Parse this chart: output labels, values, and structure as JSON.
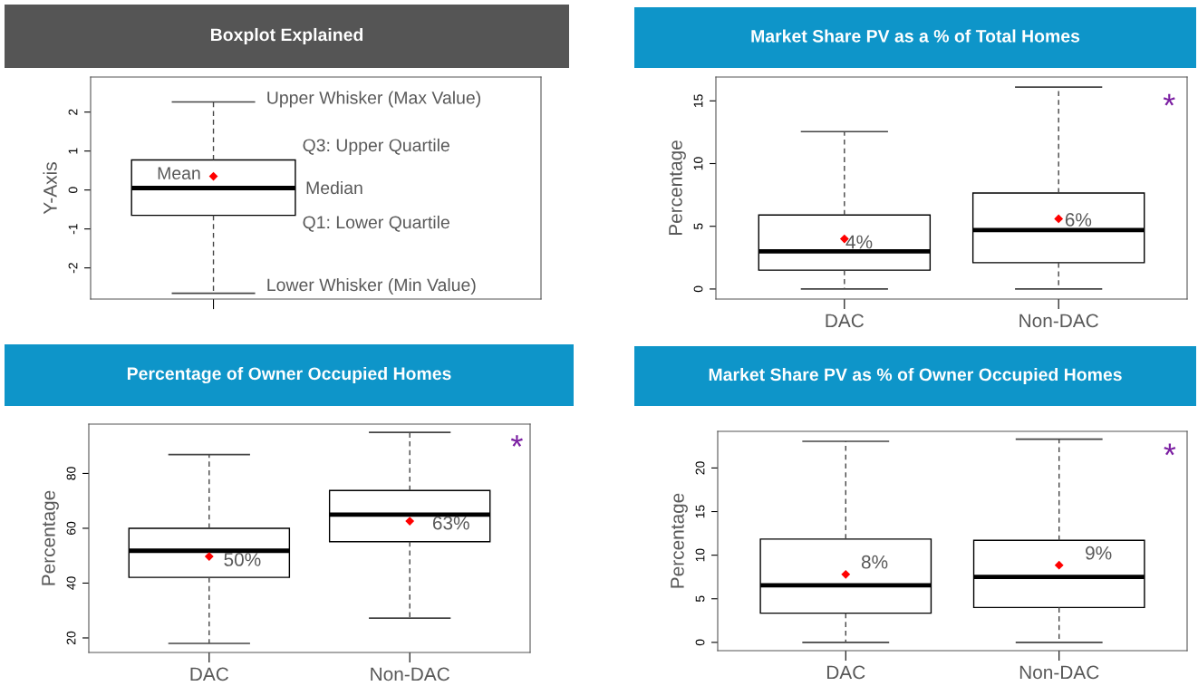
{
  "chart_data": [
    {
      "type": "box",
      "title": "Boxplot Explained",
      "ylabel": "Y-Axis",
      "categories": [
        null
      ],
      "boxes": [
        {
          "low": -2.65,
          "q1": -0.65,
          "median": 0.05,
          "q3": 0.77,
          "high": 2.26,
          "mean": 0.35
        }
      ],
      "ylim": [
        -2.8,
        2.9
      ],
      "yticks": [
        {
          "value": -2,
          "label": "-2"
        },
        {
          "value": -1,
          "label": "-1"
        },
        0,
        1,
        2
      ],
      "grid": false,
      "annotations": [
        "Upper Whisker (Max Value)",
        "Q3: Upper Quartile",
        "Mean",
        "Median",
        "Q1: Lower Quartile",
        "Lower Whisker (Min Value)"
      ]
    },
    {
      "type": "box",
      "title": "Market Share PV as a % of Total Homes",
      "ylabel": "Percentage",
      "categories": [
        "DAC",
        "Non-DAC"
      ],
      "boxes": [
        {
          "low": 0,
          "q1": 1.5,
          "median": 3.0,
          "q3": 5.9,
          "high": 12.55,
          "mean": 4.0
        },
        {
          "low": 0,
          "q1": 2.1,
          "median": 4.7,
          "q3": 7.65,
          "high": 16.1,
          "mean": 5.6
        }
      ],
      "ylim": [
        -0.8,
        16.9
      ],
      "yticks": [
        0,
        5,
        10,
        15
      ],
      "grid": false,
      "annotations": [
        "4%",
        "6%",
        "*"
      ]
    },
    {
      "type": "box",
      "title": "Percentage of Owner Occupied Homes",
      "ylabel": "Percentage",
      "categories": [
        "DAC",
        "Non-DAC"
      ],
      "boxes": [
        {
          "low": 18.0,
          "q1": 42.1,
          "median": 51.8,
          "q3": 60.0,
          "high": 86.9,
          "mean": 49.7
        },
        {
          "low": 27.2,
          "q1": 55.1,
          "median": 65.0,
          "q3": 73.8,
          "high": 95.0,
          "mean": 62.6
        }
      ],
      "ylim": [
        14.7,
        98.0
      ],
      "yticks": [
        20,
        40,
        60,
        80
      ],
      "grid": false,
      "annotations": [
        "50%",
        "63%",
        "*"
      ]
    },
    {
      "type": "box",
      "title": "Market Share PV as % of Owner Occupied Homes",
      "ylabel": "Percentage",
      "categories": [
        "DAC",
        "Non-DAC"
      ],
      "boxes": [
        {
          "low": 0,
          "q1": 3.35,
          "median": 6.55,
          "q3": 11.85,
          "high": 23.06,
          "mean": 7.8
        },
        {
          "low": 0,
          "q1": 4.0,
          "median": 7.5,
          "q3": 11.7,
          "high": 23.3,
          "mean": 8.85
        }
      ],
      "ylim": [
        -0.95,
        24.2
      ],
      "yticks": [
        0,
        5,
        10,
        15,
        20
      ],
      "grid": false,
      "annotations": [
        "8%",
        "9%",
        "*"
      ]
    }
  ]
}
